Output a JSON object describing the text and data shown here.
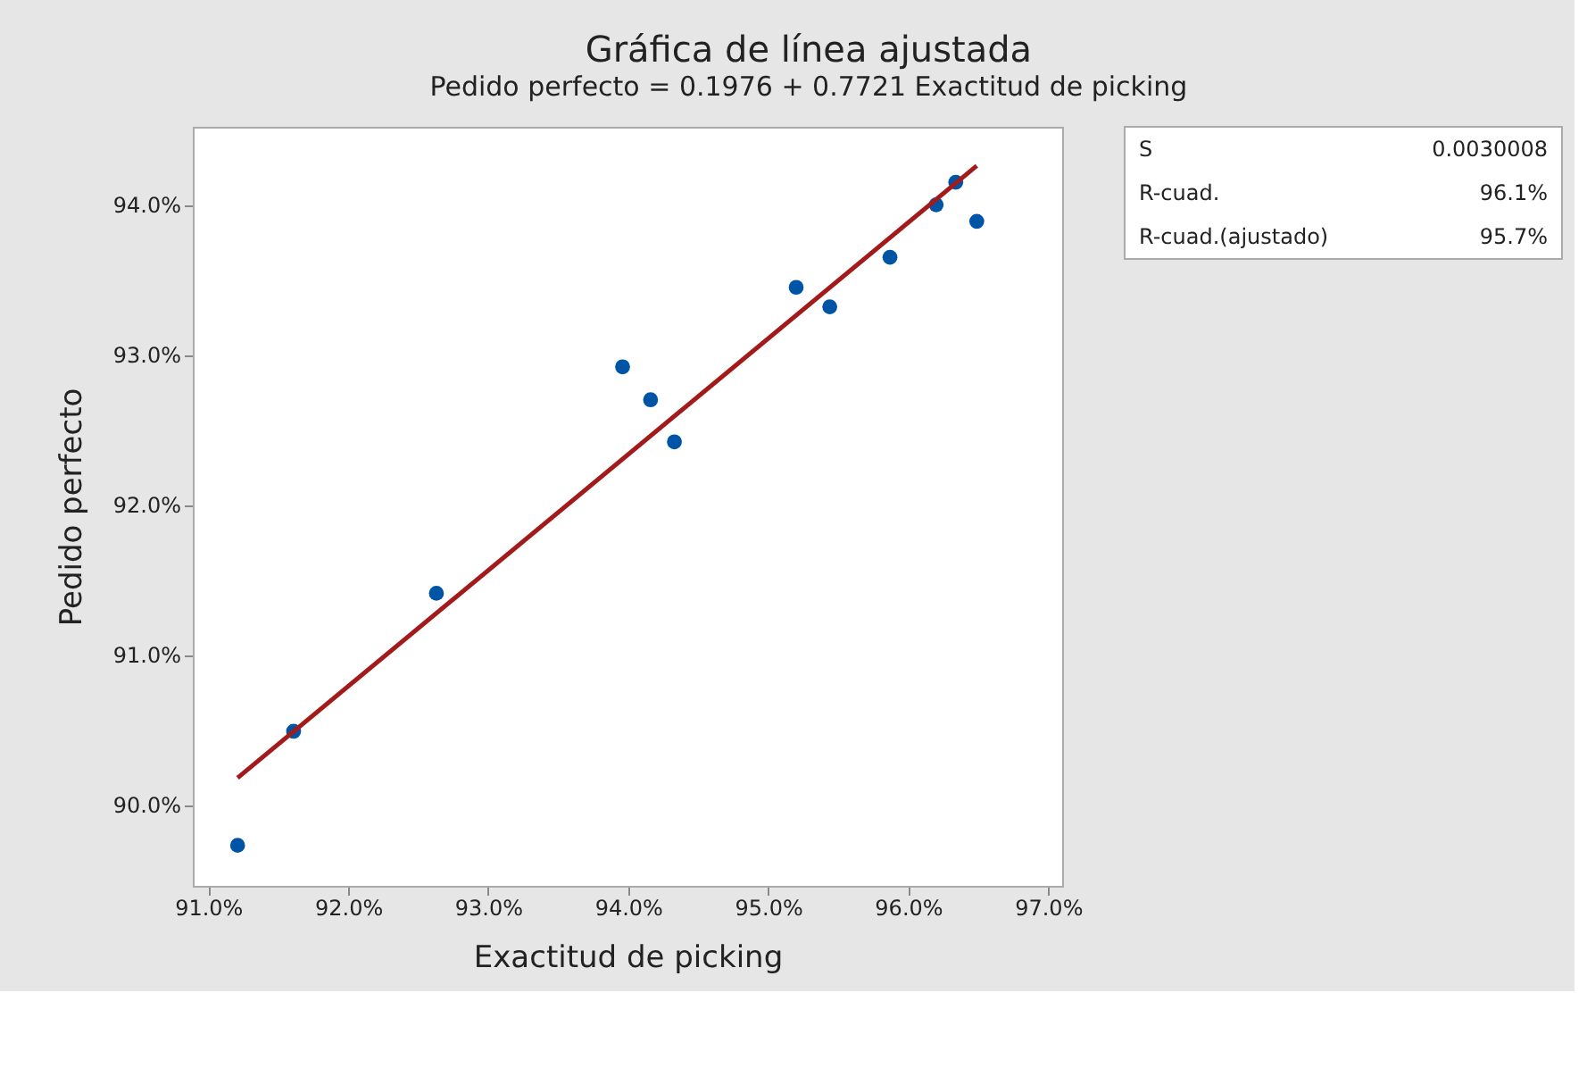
{
  "chart_data": {
    "type": "scatter",
    "title": "Gráfica de línea ajustada",
    "subtitle": "Pedido perfecto = 0.1976 + 0.7721 Exactitud de picking",
    "xlabel": "Exactitud de picking",
    "ylabel": "Pedido perfecto",
    "x": [
      91.21,
      91.61,
      92.63,
      93.96,
      94.16,
      94.33,
      95.2,
      95.44,
      95.87,
      96.2,
      96.34,
      96.49
    ],
    "series": [
      {
        "color": "#0054a6",
        "marker": "circle",
        "values": [
          89.73,
          90.49,
          91.41,
          92.92,
          92.7,
          92.42,
          93.45,
          93.32,
          93.65,
          94.0,
          94.15,
          93.89
        ]
      },
      {
        "type": "line",
        "color": "#a31a1a",
        "line_style": "solid",
        "x": [
          91.21,
          96.49
        ],
        "values": [
          90.18,
          94.26
        ]
      }
    ],
    "xlim": [
      90.89,
      97.1
    ],
    "ylim": [
      89.46,
      94.52
    ],
    "xticks": [
      {
        "value": 91,
        "label": "91.0%"
      },
      {
        "value": 92,
        "label": "92.0%"
      },
      {
        "value": 93,
        "label": "93.0%"
      },
      {
        "value": 94,
        "label": "94.0%"
      },
      {
        "value": 95,
        "label": "95.0%"
      },
      {
        "value": 96,
        "label": "96.0%"
      },
      {
        "value": 97,
        "label": "97.0%"
      }
    ],
    "yticks": [
      {
        "value": 90,
        "label": "90.0%"
      },
      {
        "value": 91,
        "label": "91.0%"
      },
      {
        "value": 92,
        "label": "92.0%"
      },
      {
        "value": 93,
        "label": "93.0%"
      },
      {
        "value": 94,
        "label": "94.0%"
      }
    ],
    "grid": false,
    "annotations": [
      "S",
      "0.0030008",
      "R-cuad.",
      "96.1%",
      "R-cuad.(ajustado)",
      "95.7%"
    ]
  }
}
